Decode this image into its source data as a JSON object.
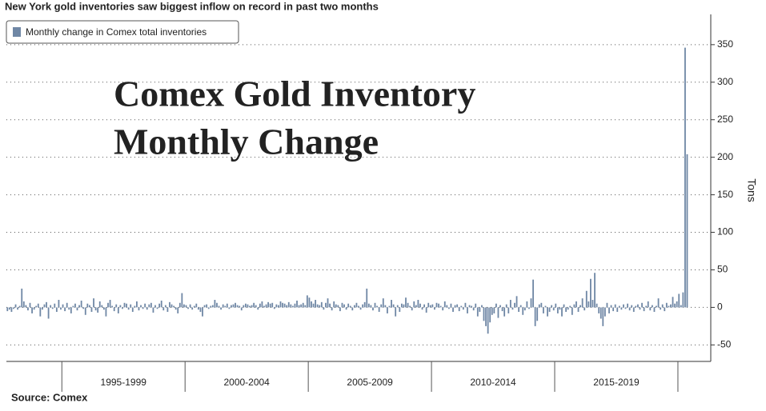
{
  "chart_data": {
    "type": "bar",
    "title": "New York gold inventories saw biggest inflow on record in past two months",
    "annotation": [
      "Comex Gold Inventory",
      "Monthly Change"
    ],
    "y_label": "Tons",
    "source": "Source:  Comex",
    "period_labels": [
      "1995-1999",
      "2000-2004",
      "2005-2009",
      "2010-2014",
      "2015-2019"
    ],
    "period_dividers": [
      26.5,
      86.5,
      146.5,
      206.5,
      266.5,
      326.5
    ],
    "xlim": [
      -0.5,
      342.5
    ],
    "ylim": [
      -72,
      385
    ],
    "yticks": [
      -50,
      0,
      50,
      100,
      150,
      200,
      250,
      300,
      350
    ],
    "grid": true,
    "legend": "top-left",
    "series": [
      {
        "name": "Monthly change in Comex total inventories",
        "color": "#6f87a5",
        "values": [
          -5,
          -3,
          -6,
          -2,
          4,
          -3,
          2,
          25,
          8,
          3,
          -4,
          6,
          -8,
          -3,
          2,
          5,
          -12,
          -3,
          4,
          7,
          -15,
          3,
          -2,
          5,
          -6,
          10,
          -3,
          4,
          -5,
          6,
          -3,
          -8,
          2,
          5,
          -4,
          3,
          9,
          -2,
          -10,
          5,
          3,
          -6,
          12,
          -4,
          -7,
          8,
          3,
          -3,
          -12,
          6,
          10,
          2,
          -5,
          4,
          -8,
          3,
          -2,
          6,
          5,
          -3,
          4,
          -6,
          2,
          8,
          -4,
          3,
          -2,
          5,
          -3,
          4,
          6,
          -7,
          3,
          -2,
          5,
          9,
          -4,
          3,
          -6,
          7,
          4,
          2,
          -3,
          -8,
          6,
          19,
          4,
          3,
          -2,
          4,
          -3,
          2,
          5,
          -3,
          -6,
          -12,
          3,
          4,
          -2,
          2,
          3,
          10,
          6,
          2,
          -3,
          4,
          2,
          5,
          -2,
          3,
          4,
          6,
          3,
          2,
          -4,
          3,
          5,
          4,
          2,
          3,
          6,
          3,
          -3,
          5,
          8,
          2,
          4,
          7,
          5,
          6,
          -2,
          4,
          3,
          8,
          6,
          5,
          3,
          7,
          4,
          2,
          5,
          9,
          3,
          4,
          6,
          3,
          16,
          13,
          8,
          5,
          10,
          4,
          3,
          7,
          -3,
          6,
          12,
          5,
          -4,
          8,
          4,
          3,
          -5,
          6,
          4,
          -3,
          5,
          2,
          -4,
          3,
          6,
          2,
          -3,
          4,
          7,
          25,
          5,
          3,
          -4,
          6,
          2,
          -6,
          4,
          12,
          3,
          -8,
          2,
          10,
          4,
          -12,
          3,
          -6,
          5,
          4,
          13,
          6,
          2,
          -4,
          8,
          3,
          10,
          5,
          -3,
          4,
          -7,
          6,
          3,
          4,
          -3,
          6,
          5,
          2,
          -4,
          8,
          3,
          -2,
          5,
          -6,
          3,
          4,
          -5,
          2,
          -3,
          6,
          -8,
          3,
          2,
          -4,
          5,
          -12,
          -6,
          3,
          -18,
          -25,
          -35,
          -20,
          -10,
          -8,
          5,
          -14,
          3,
          -5,
          -12,
          4,
          -8,
          10,
          -3,
          6,
          15,
          -6,
          3,
          -10,
          -4,
          8,
          -2,
          12,
          37,
          -25,
          -18,
          4,
          6,
          -8,
          2,
          -12,
          -6,
          3,
          -4,
          5,
          -8,
          -3,
          -12,
          4,
          -6,
          -3,
          2,
          -10,
          4,
          8,
          -6,
          3,
          12,
          -4,
          22,
          8,
          38,
          10,
          46,
          5,
          -8,
          -15,
          -25,
          -12,
          6,
          -8,
          3,
          -5,
          4,
          -6,
          2,
          -3,
          4,
          -2,
          5,
          -4,
          3,
          -6,
          2,
          4,
          -3,
          6,
          -5,
          2,
          8,
          -4,
          3,
          -6,
          2,
          12,
          -3,
          4,
          -5,
          6,
          2,
          4,
          14,
          5,
          8,
          18,
          3,
          20,
          346,
          204
        ]
      }
    ]
  }
}
